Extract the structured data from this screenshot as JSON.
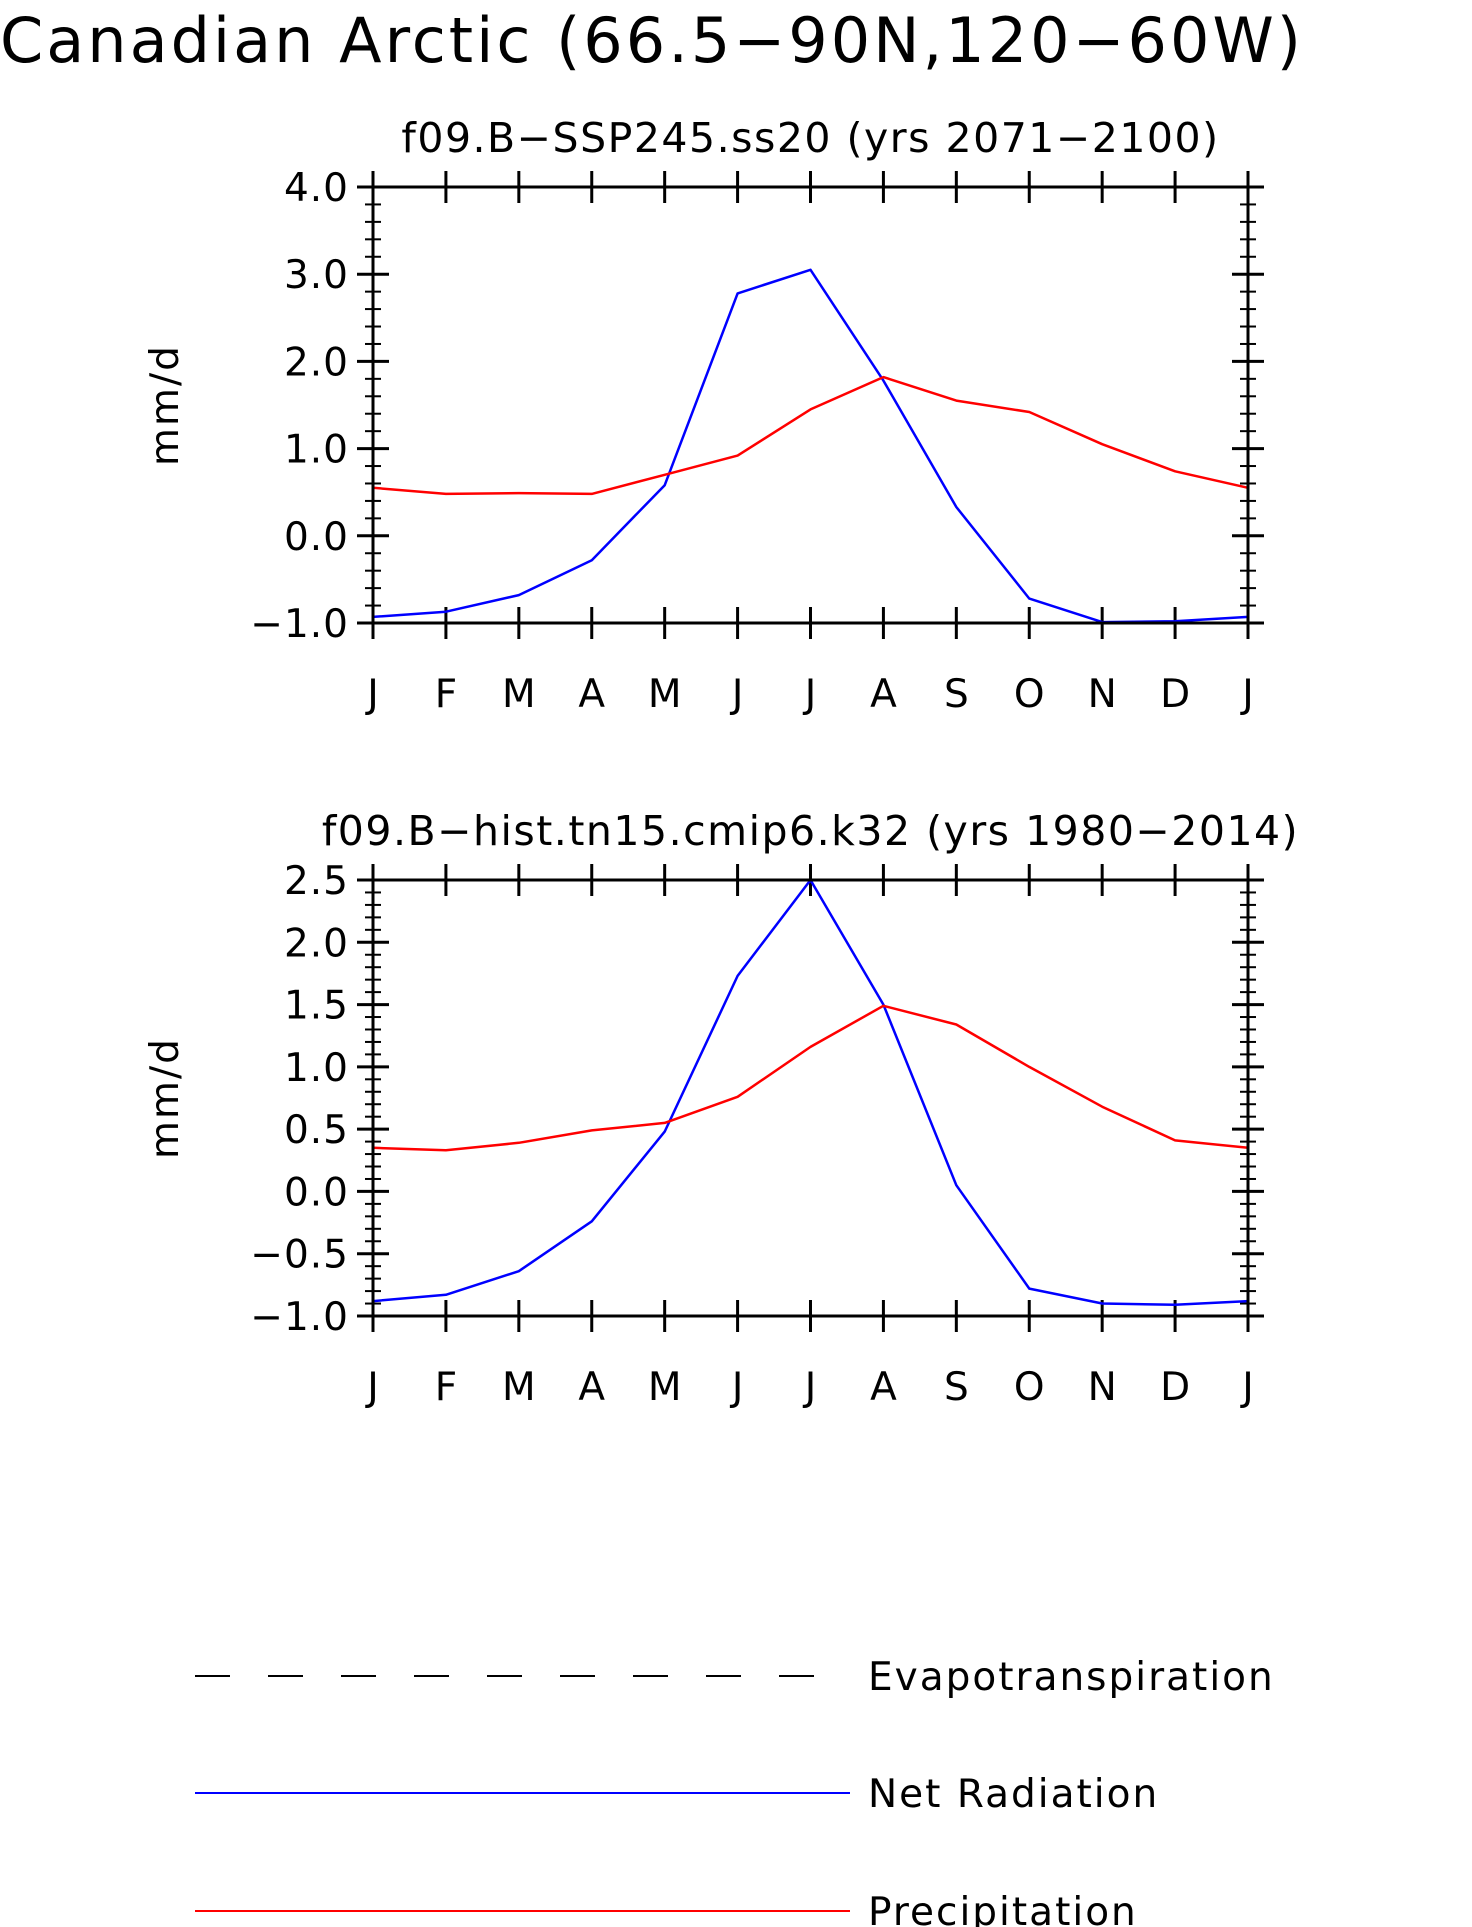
{
  "figure": {
    "title": "Canadian Arctic (66.5−90N,120−60W)"
  },
  "legend": [
    {
      "label": "Evapotranspiration",
      "color": "#000000",
      "style": "dashed"
    },
    {
      "label": "Net Radiation",
      "color": "#0000ff",
      "style": "solid"
    },
    {
      "label": "Precipitation",
      "color": "#ff0000",
      "style": "solid"
    }
  ],
  "chart_data": [
    {
      "type": "line",
      "title": "f09.B−SSP245.ss20 (yrs 2071−2100)",
      "xlabel": "",
      "ylabel": "mm/d",
      "categories": [
        "J",
        "F",
        "M",
        "A",
        "M",
        "J",
        "J",
        "A",
        "S",
        "O",
        "N",
        "D",
        "J"
      ],
      "ylim": [
        -1.0,
        4.0
      ],
      "yticks": [
        -1.0,
        0.0,
        1.0,
        2.0,
        3.0,
        4.0
      ],
      "ytick_labels": [
        "−1.0",
        "0.0",
        "1.0",
        "2.0",
        "3.0",
        "4.0"
      ],
      "series": [
        {
          "name": "Net Radiation",
          "color": "#0000ff",
          "values": [
            -0.93,
            -0.87,
            -0.68,
            -0.28,
            0.58,
            2.78,
            3.05,
            1.78,
            0.33,
            -0.72,
            -0.99,
            -0.98,
            -0.93
          ]
        },
        {
          "name": "Precipitation",
          "color": "#ff0000",
          "values": [
            0.55,
            0.48,
            0.49,
            0.48,
            0.7,
            0.92,
            1.45,
            1.82,
            1.55,
            1.42,
            1.05,
            0.74,
            0.55
          ]
        }
      ]
    },
    {
      "type": "line",
      "title": "f09.B−hist.tn15.cmip6.k32 (yrs 1980−2014)",
      "xlabel": "",
      "ylabel": "mm/d",
      "categories": [
        "J",
        "F",
        "M",
        "A",
        "M",
        "J",
        "J",
        "A",
        "S",
        "O",
        "N",
        "D",
        "J"
      ],
      "ylim": [
        -1.0,
        2.5
      ],
      "yticks": [
        -1.0,
        -0.5,
        0.0,
        0.5,
        1.0,
        1.5,
        2.0,
        2.5
      ],
      "ytick_labels": [
        "−1.0",
        "−0.5",
        "0.0",
        "0.5",
        "1.0",
        "1.5",
        "2.0",
        "2.5"
      ],
      "series": [
        {
          "name": "Net Radiation",
          "color": "#0000ff",
          "values": [
            -0.88,
            -0.83,
            -0.64,
            -0.24,
            0.48,
            1.73,
            2.5,
            1.5,
            0.05,
            -0.78,
            -0.9,
            -0.91,
            -0.88
          ]
        },
        {
          "name": "Precipitation",
          "color": "#ff0000",
          "values": [
            0.35,
            0.33,
            0.39,
            0.49,
            0.55,
            0.76,
            1.16,
            1.49,
            1.34,
            1.0,
            0.68,
            0.41,
            0.35
          ]
        }
      ]
    }
  ]
}
